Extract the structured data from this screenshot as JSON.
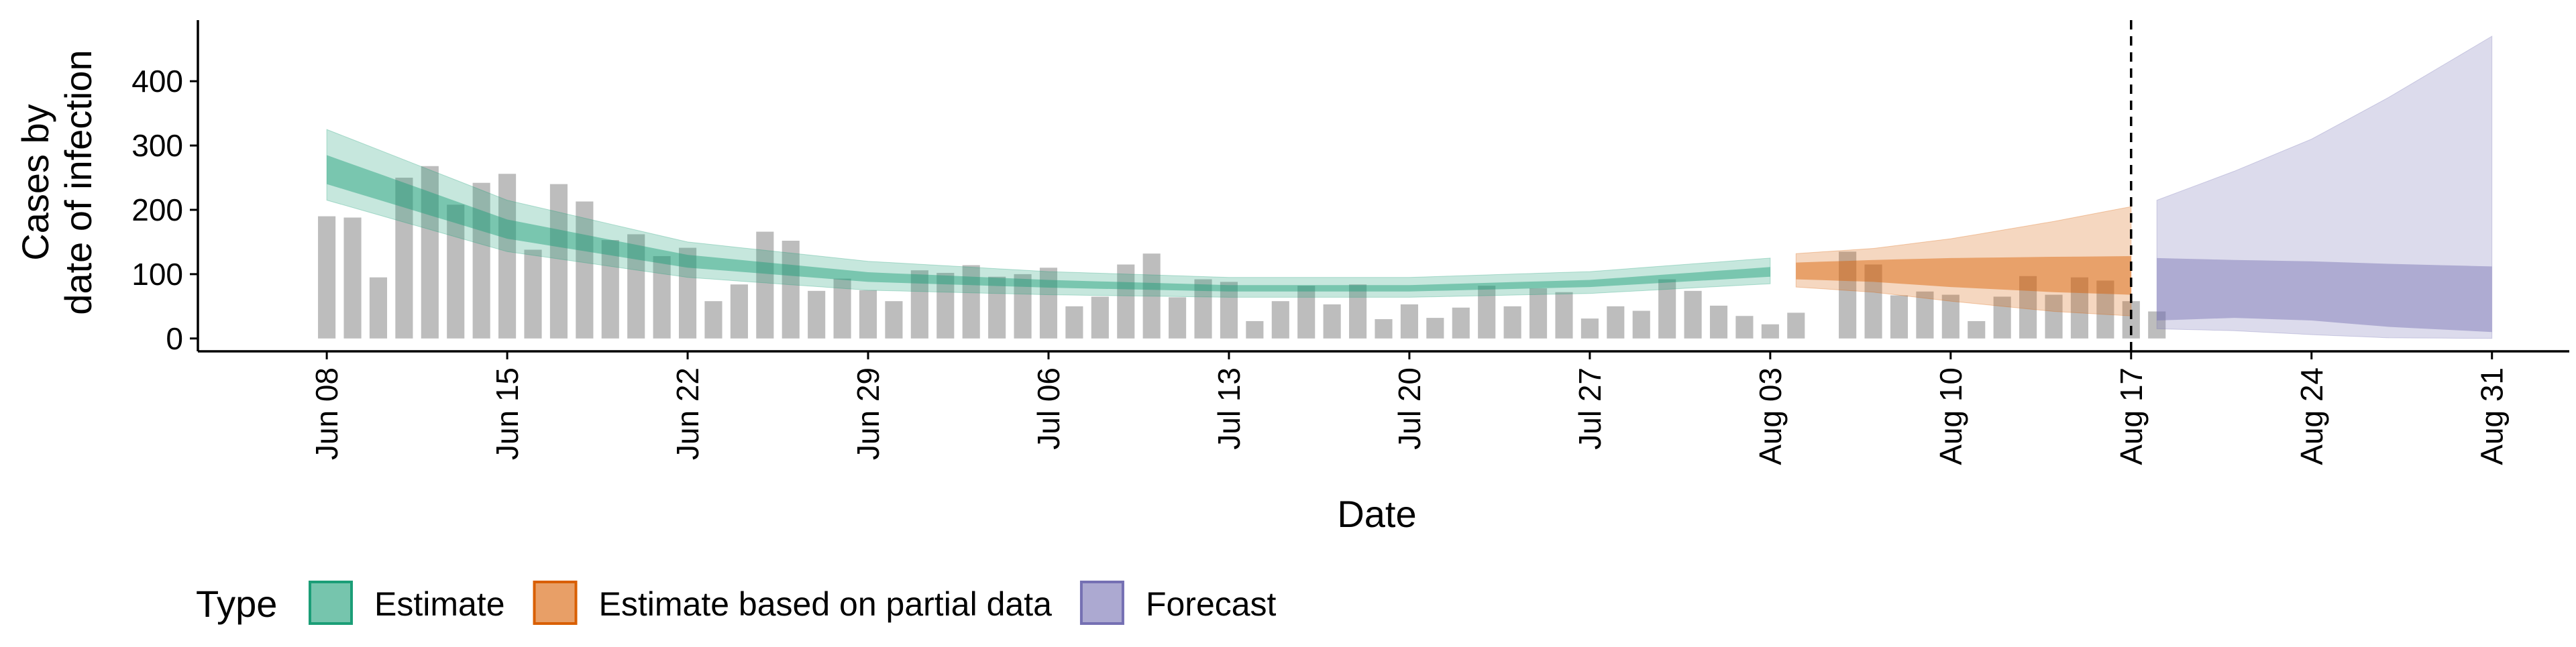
{
  "chart_data": {
    "type": "bar",
    "title": "",
    "xlabel": "Date",
    "ylabel": [
      "Cases by",
      "date of infection"
    ],
    "x_ticks": [
      "Jun 08",
      "Jun 15",
      "Jun 22",
      "Jun 29",
      "Jul 06",
      "Jul 13",
      "Jul 20",
      "Jul 27",
      "Aug 03",
      "Aug 10",
      "Aug 17",
      "Aug 24",
      "Aug 31"
    ],
    "y_ticks": [
      0,
      100,
      200,
      300,
      400
    ],
    "xlim": [
      "2020-06-03",
      "2020-09-03"
    ],
    "ylim": [
      -20,
      495
    ],
    "grid": false,
    "reference_line": {
      "date": "2020-08-17",
      "style": "dashed"
    },
    "legend": {
      "title": "Type",
      "position": "bottom-left",
      "items": [
        {
          "label": "Estimate",
          "color": "#1b9e77"
        },
        {
          "label": "Estimate based on partial data",
          "color": "#d95f02"
        },
        {
          "label": "Forecast",
          "color": "#7570b3"
        }
      ]
    },
    "bar_color": "#bdbdbd",
    "start_date": "2020-06-08",
    "reported_cases": [
      190,
      188,
      95,
      250,
      268,
      208,
      242,
      256,
      138,
      240,
      213,
      153,
      162,
      128,
      141,
      58,
      84,
      166,
      152,
      74,
      93,
      75,
      58,
      106,
      102,
      114,
      96,
      100,
      110,
      50,
      65,
      115,
      132,
      64,
      92,
      88,
      27,
      58,
      82,
      53,
      84,
      30,
      53,
      32,
      48,
      82,
      50,
      78,
      72,
      31,
      50,
      43,
      92,
      74,
      51,
      35,
      22,
      40,
      0,
      135,
      115,
      67,
      73,
      68,
      27,
      65,
      97,
      68,
      95,
      90,
      58,
      42
    ],
    "series": [
      {
        "name": "Estimate",
        "start": "2020-06-08",
        "end": "2020-08-03",
        "knots": {
          "dates": [
            "2020-06-08",
            "2020-06-15",
            "2020-06-22",
            "2020-06-29",
            "2020-07-06",
            "2020-07-13",
            "2020-07-20",
            "2020-07-27",
            "2020-08-03"
          ],
          "median": [
            262,
            170,
            120,
            95,
            85,
            78,
            78,
            85,
            103
          ],
          "lower_50": [
            240,
            155,
            110,
            88,
            79,
            73,
            73,
            80,
            96
          ],
          "upper_50": [
            285,
            185,
            130,
            103,
            91,
            83,
            83,
            91,
            111
          ],
          "lower_90": [
            215,
            135,
            95,
            75,
            68,
            64,
            64,
            70,
            85
          ],
          "upper_90": [
            325,
            215,
            150,
            120,
            104,
            95,
            95,
            104,
            125
          ]
        }
      },
      {
        "name": "Estimate based on partial data",
        "start": "2020-08-04",
        "end": "2020-08-17",
        "knots": {
          "dates": [
            "2020-08-04",
            "2020-08-07",
            "2020-08-10",
            "2020-08-14",
            "2020-08-17"
          ],
          "median": [
            105,
            106,
            104,
            100,
            98
          ],
          "lower_50": [
            92,
            88,
            80,
            72,
            68
          ],
          "upper_50": [
            118,
            122,
            125,
            127,
            128
          ],
          "lower_90": [
            80,
            72,
            58,
            42,
            35
          ],
          "upper_90": [
            132,
            140,
            155,
            182,
            205
          ]
        }
      },
      {
        "name": "Forecast",
        "start": "2020-08-18",
        "end": "2020-08-31",
        "knots": {
          "dates": [
            "2020-08-18",
            "2020-08-21",
            "2020-08-24",
            "2020-08-27",
            "2020-08-31"
          ],
          "median": [
            75,
            74,
            72,
            66,
            58
          ],
          "lower_50": [
            28,
            32,
            28,
            18,
            10
          ],
          "upper_50": [
            125,
            122,
            120,
            116,
            112
          ],
          "lower_90": [
            15,
            12,
            6,
            1,
            0
          ],
          "upper_90": [
            215,
            260,
            310,
            375,
            470
          ]
        }
      }
    ]
  }
}
